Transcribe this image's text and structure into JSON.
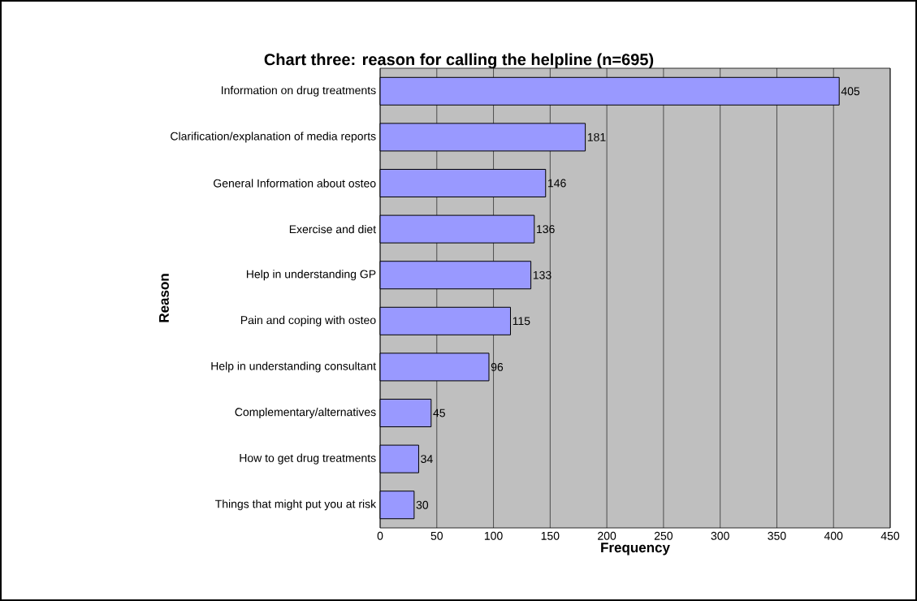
{
  "chart_data": {
    "type": "bar",
    "orientation": "horizontal",
    "title": "Chart three: reason for calling the helpline (n=695)",
    "xlabel": "Frequency",
    "ylabel": "Reason",
    "categories": [
      "Information on drug treatments",
      "Clarification/explanation of media reports",
      "General Information about osteo",
      "Exercise and diet",
      "Help in understanding GP",
      "Pain and coping with osteo",
      "Help in understanding consultant",
      "Complementary/alternatives",
      "How to get drug treatments",
      "Things that might put you at risk"
    ],
    "values": [
      405,
      181,
      146,
      136,
      133,
      115,
      96,
      45,
      34,
      30
    ],
    "color": "#9999ff",
    "xlim": [
      0,
      450
    ],
    "xticks": [
      0,
      50,
      100,
      150,
      200,
      250,
      300,
      350,
      400,
      450
    ],
    "grid": "x",
    "data_labels": true
  }
}
